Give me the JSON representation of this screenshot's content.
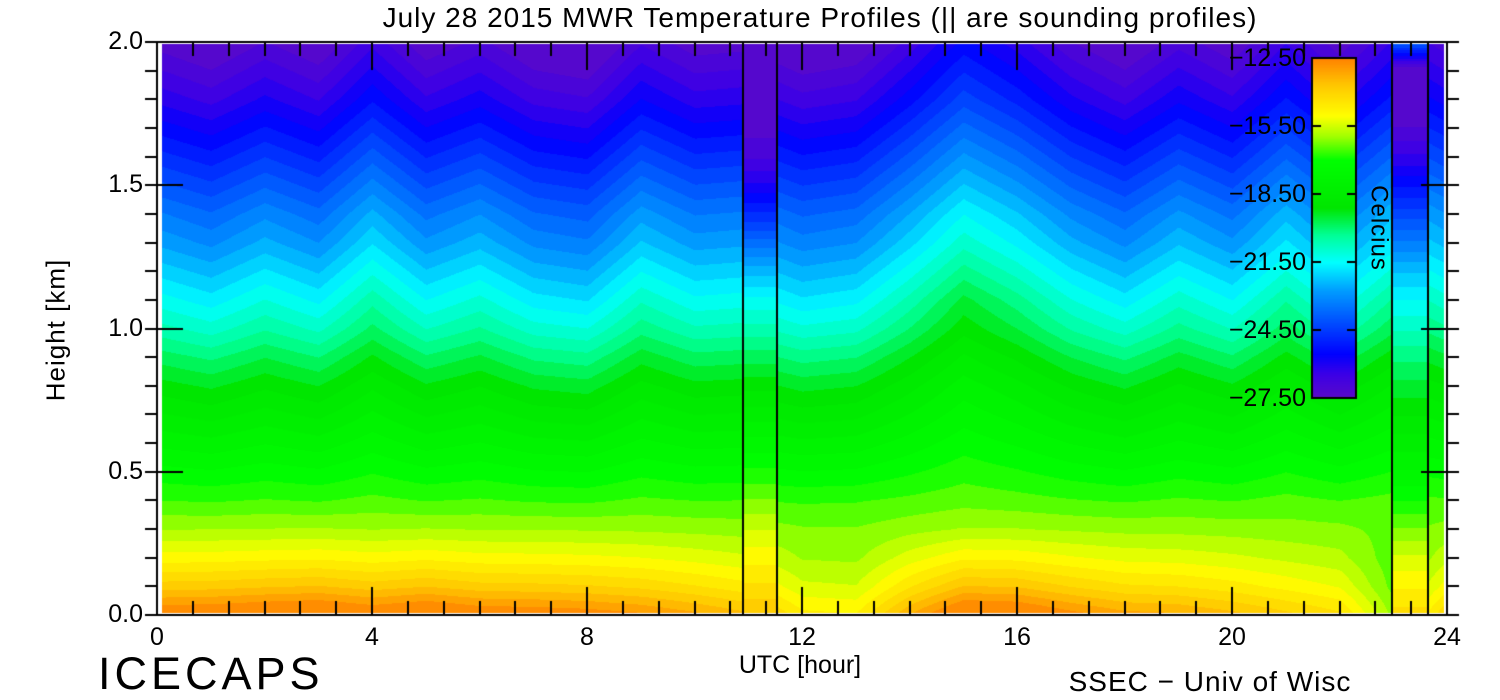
{
  "chart_data": {
    "type": "heatmap",
    "title": "July 28 2015 MWR Temperature Profiles (|| are sounding profiles)",
    "xlabel": "UTC [hour]",
    "ylabel": "Height [km]",
    "contour_interval_c": 0.375,
    "axes": {
      "x_range": [
        0,
        24
      ],
      "x_major_ticks": [
        0,
        4,
        8,
        12,
        16,
        20,
        24
      ],
      "x_tick_labels": [
        "0",
        "4",
        "8",
        "12",
        "16",
        "20",
        "24"
      ],
      "x_minor_divisions": 6,
      "y_range": [
        0,
        2
      ],
      "y_major_ticks": [
        0,
        0.5,
        1.0,
        1.5,
        2.0
      ],
      "y_tick_labels": [
        "0.0",
        "0.5",
        "1.0",
        "1.5",
        "2.0"
      ],
      "y_minor_step_km": 0.1
    },
    "colorbar": {
      "label": "Celcius",
      "range_c": [
        -27.5,
        -12.5
      ],
      "tick_values": [
        -12.5,
        -15.5,
        -18.5,
        -21.5,
        -24.5,
        -27.5
      ],
      "tick_labels": [
        "−12.50",
        "−15.50",
        "−18.50",
        "−21.50",
        "−24.50",
        "−27.50"
      ],
      "color_stops": [
        {
          "f": 0.0,
          "color": "#5A0AC8"
        },
        {
          "f": 0.07,
          "color": "#3C00E6"
        },
        {
          "f": 0.13,
          "color": "#0000FF"
        },
        {
          "f": 0.25,
          "color": "#0064FF"
        },
        {
          "f": 0.32,
          "color": "#00A0FF"
        },
        {
          "f": 0.4,
          "color": "#00FFFF"
        },
        {
          "f": 0.48,
          "color": "#00FF96"
        },
        {
          "f": 0.56,
          "color": "#00E600"
        },
        {
          "f": 0.7,
          "color": "#00FF00"
        },
        {
          "f": 0.77,
          "color": "#A0FF00"
        },
        {
          "f": 0.83,
          "color": "#FFFF00"
        },
        {
          "f": 0.92,
          "color": "#FFC800"
        },
        {
          "f": 1.0,
          "color": "#FF8200"
        }
      ]
    },
    "grid": {
      "hours": [
        0,
        1,
        2,
        3,
        4,
        5,
        6,
        7,
        8,
        9,
        10,
        11,
        12,
        13,
        14,
        15,
        16,
        17,
        18,
        19,
        20,
        21,
        22,
        23,
        24
      ],
      "heights_km": [
        0.0,
        0.1,
        0.2,
        0.3,
        0.4,
        0.5,
        0.6,
        0.7,
        0.8,
        0.9,
        1.0,
        1.1,
        1.2,
        1.3,
        1.4,
        1.5,
        1.6,
        1.7,
        1.8,
        1.9,
        2.0
      ],
      "base_profile_c": [
        -12.5,
        -13.9,
        -15.0,
        -15.9,
        -16.6,
        -17.2,
        -17.8,
        -18.4,
        -19.0,
        -19.7,
        -20.5,
        -21.2,
        -21.9,
        -22.6,
        -23.2,
        -23.9,
        -24.6,
        -25.3,
        -26.0,
        -26.6,
        -27.2
      ],
      "surface_temp_c": [
        -12.35,
        -12.3,
        -12.15,
        -12.05,
        -12.35,
        -12.1,
        -12.4,
        -12.45,
        -12.55,
        -12.75,
        -13.1,
        -13.5,
        -14.6,
        -14.7,
        -13.2,
        -12.05,
        -12.15,
        -12.65,
        -13.05,
        -13.15,
        -13.45,
        -13.85,
        -14.25,
        -16.0,
        -13.9
      ],
      "upper_anomaly_c": [
        -0.1,
        -0.5,
        0.1,
        -0.4,
        0.7,
        -0.3,
        0.2,
        -0.5,
        -0.7,
        0.4,
        -0.2,
        -0.1,
        -0.6,
        -0.4,
        0.6,
        1.7,
        1.0,
        0.1,
        -0.5,
        0.3,
        -0.3,
        0.8,
        -0.2,
        0.9,
        0.2
      ],
      "surface_layer_depth_km": 0.35,
      "upper_ramp_km": [
        0.3,
        1.1
      ]
    },
    "sounding_profiles": [
      {
        "start_hour": 10.9,
        "end_hour": 11.53,
        "temps_c": [
          -13.6,
          -14.3,
          -14.9,
          -15.5,
          -16.2,
          -16.9,
          -17.6,
          -18.3,
          -19.0,
          -19.8,
          -20.6,
          -21.4,
          -22.4,
          -23.6,
          -24.8,
          -25.9,
          -26.8,
          -27.3,
          -27.6,
          -27.7,
          -27.8
        ]
      },
      {
        "start_hour": 22.98,
        "end_hour": 23.65,
        "temps_c": [
          -14.2,
          -14.8,
          -15.4,
          -16.2,
          -17.0,
          -17.7,
          -18.3,
          -18.9,
          -19.5,
          -20.1,
          -20.8,
          -21.5,
          -22.3,
          -23.3,
          -24.3,
          -25.3,
          -26.3,
          -27.1,
          -27.6,
          -27.7,
          -23.8
        ]
      }
    ]
  },
  "annotations": {
    "project": "ICECAPS",
    "credit": "SSEC − Univ of Wisc"
  }
}
